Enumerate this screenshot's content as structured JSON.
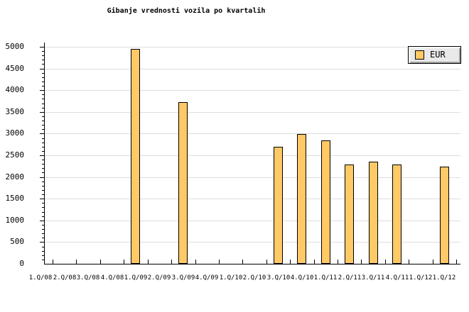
{
  "chart_data": {
    "type": "bar",
    "title": "Gibanje vrednosti vozila po kvartalih",
    "categories": [
      "1.Q/08",
      "2.Q/08",
      "3.Q/08",
      "4.Q/08",
      "1.Q/09",
      "2.Q/09",
      "3.Q/09",
      "4.Q/09",
      "1.Q/10",
      "2.Q/10",
      "3.Q/10",
      "4.Q/10",
      "1.Q/11",
      "2.Q/11",
      "3.Q/11",
      "4.Q/11",
      "1.Q/12",
      "1.Q/12"
    ],
    "series": [
      {
        "name": "EUR",
        "values": [
          null,
          null,
          null,
          null,
          4950,
          null,
          3725,
          null,
          null,
          null,
          2695,
          2990,
          2835,
          2295,
          2360,
          2295,
          null,
          2235
        ]
      }
    ],
    "xlabel": "",
    "ylabel": "",
    "ylim": [
      0,
      5000
    ],
    "ytick_step": 500,
    "y_minor_step": 100,
    "grid": "horizontal-major",
    "legend_position": "top-right",
    "colors": {
      "bar_fill": "#FFC966",
      "bar_border": "#000000",
      "grid_line": "#DDDDDD",
      "axis": "#000000",
      "background": "#FFFFFF"
    }
  }
}
